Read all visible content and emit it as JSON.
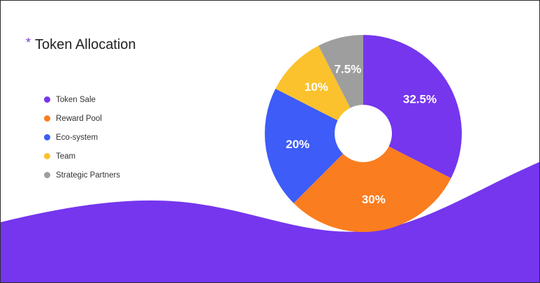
{
  "title": "Token Allocation",
  "title_marker": "*",
  "accent_color": "#7536ee",
  "chart_data": {
    "type": "pie",
    "title": "Token Allocation",
    "donut": true,
    "legend_position": "left",
    "categories": [
      "Token Sale",
      "Reward Pool",
      "Eco-system",
      "Team",
      "Strategic Partners"
    ],
    "values": [
      32.5,
      30,
      20,
      10,
      7.5
    ],
    "labels": [
      "32.5%",
      "30%",
      "20%",
      "10%",
      "7.5%"
    ],
    "colors": [
      "#7536ee",
      "#fa7d1f",
      "#3d5cf8",
      "#fbc22d",
      "#9e9e9e"
    ]
  }
}
